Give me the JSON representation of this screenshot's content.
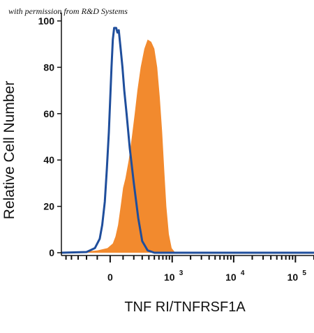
{
  "watermark": "with permission from R&D Systems",
  "chart_data": {
    "type": "area",
    "xlabel": "TNF RI/TNFRSF1A",
    "ylabel": "Relative Cell Number",
    "x_scale": "biexponential",
    "xlim": [
      -600,
      200000
    ],
    "ylim": [
      0,
      100
    ],
    "yticks": [
      0,
      20,
      40,
      60,
      80,
      100
    ],
    "xticks": [
      {
        "value": 0,
        "base": "0",
        "exp": ""
      },
      {
        "value": 1000,
        "base": "10",
        "exp": "3"
      },
      {
        "value": 10000,
        "base": "10",
        "exp": "4"
      },
      {
        "value": 100000,
        "base": "10",
        "exp": "5"
      }
    ],
    "colors": {
      "stained": "#f28a2e",
      "isotype": "#1f4e9c"
    },
    "series": [
      {
        "style": "filled",
        "color": "#f28a2e",
        "points": [
          [
            -600,
            0
          ],
          [
            -200,
            0.5
          ],
          [
            -100,
            1
          ],
          [
            -20,
            2
          ],
          [
            20,
            4
          ],
          [
            40,
            7
          ],
          [
            60,
            12
          ],
          [
            80,
            20
          ],
          [
            100,
            28
          ],
          [
            120,
            32
          ],
          [
            150,
            40
          ],
          [
            180,
            50
          ],
          [
            210,
            60
          ],
          [
            240,
            70
          ],
          [
            280,
            80
          ],
          [
            330,
            88
          ],
          [
            380,
            92
          ],
          [
            440,
            91
          ],
          [
            500,
            88
          ],
          [
            560,
            80
          ],
          [
            620,
            67
          ],
          [
            680,
            52
          ],
          [
            740,
            35
          ],
          [
            800,
            20
          ],
          [
            880,
            8
          ],
          [
            980,
            2
          ],
          [
            1100,
            0.3
          ],
          [
            2000,
            0
          ],
          [
            200000,
            0
          ]
        ]
      },
      {
        "style": "outline",
        "color": "#1f4e9c",
        "points": [
          [
            -600,
            0
          ],
          [
            -200,
            0.3
          ],
          [
            -120,
            2
          ],
          [
            -80,
            6
          ],
          [
            -60,
            12
          ],
          [
            -40,
            22
          ],
          [
            -25,
            36
          ],
          [
            -10,
            52
          ],
          [
            0,
            66
          ],
          [
            10,
            80
          ],
          [
            20,
            92
          ],
          [
            30,
            97
          ],
          [
            45,
            97
          ],
          [
            55,
            95
          ],
          [
            65,
            96
          ],
          [
            80,
            88
          ],
          [
            95,
            80
          ],
          [
            110,
            70
          ],
          [
            130,
            60
          ],
          [
            160,
            45
          ],
          [
            200,
            30
          ],
          [
            250,
            15
          ],
          [
            300,
            5
          ],
          [
            380,
            1
          ],
          [
            500,
            0
          ],
          [
            200000,
            0
          ]
        ]
      }
    ]
  }
}
